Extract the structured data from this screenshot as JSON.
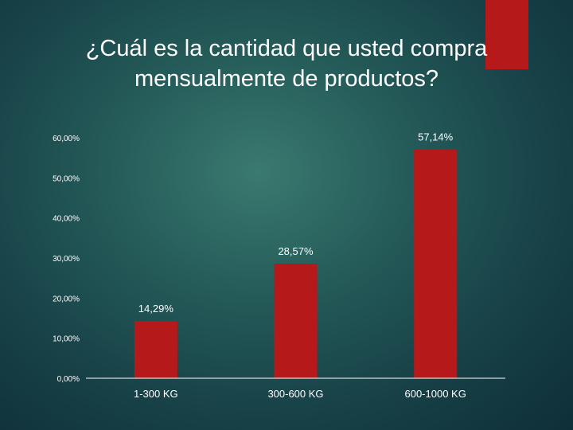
{
  "colors": {
    "accent": "#b5191a",
    "bar": "#b5191a",
    "background": "#245a58"
  },
  "slide": {
    "title_line1": "¿Cuál es la cantidad que usted compra",
    "title_line2": "mensualmente de productos?"
  },
  "chart_data": {
    "type": "bar",
    "categories": [
      "1-300 KG",
      "300-600 KG",
      "600-1000 KG"
    ],
    "values": [
      14.29,
      28.57,
      57.14
    ],
    "data_labels": [
      "14,29%",
      "28,57%",
      "57,14%"
    ],
    "y_ticks": [
      0,
      10,
      20,
      30,
      40,
      50,
      60
    ],
    "y_tick_labels": [
      "0,00%",
      "10,00%",
      "20,00%",
      "30,00%",
      "40,00%",
      "50,00%",
      "60,00%"
    ],
    "ylim": [
      0,
      60
    ],
    "grid": false,
    "legend": "none"
  }
}
